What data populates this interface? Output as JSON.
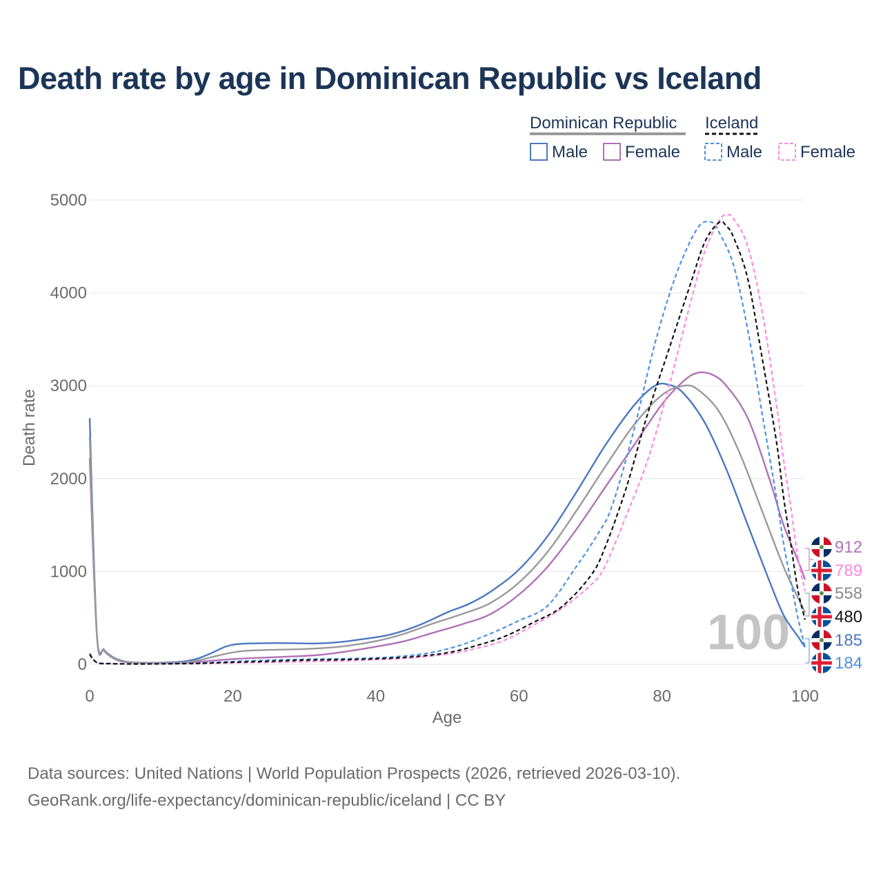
{
  "title": "Death rate by age in Dominican Republic vs Iceland",
  "source_line_1": "Data sources: United Nations | World Population Prospects (2026, retrieved 2026-03-10).",
  "source_line_2": "GeoRank.org/life-expectancy/dominican-republic/iceland | CC BY",
  "legend": {
    "countries": [
      {
        "name": "Dominican Republic",
        "style": "solid",
        "color": "#999999"
      },
      {
        "name": "Iceland",
        "style": "dashed",
        "color": "#111111"
      }
    ],
    "items": [
      {
        "label": "Male",
        "style": "solid",
        "color": "#4a78c0"
      },
      {
        "label": "Female",
        "style": "solid",
        "color": "#b070b8"
      },
      {
        "label": "Male",
        "style": "dashed",
        "color": "#4a90e2"
      },
      {
        "label": "Female",
        "style": "dashed",
        "color": "#ff88e0"
      }
    ]
  },
  "watermark": "100",
  "chart_data": {
    "type": "line",
    "title": "Death rate by age in Dominican Republic vs Iceland",
    "xlabel": "Age",
    "ylabel": "Death rate",
    "xlim": [
      0,
      100
    ],
    "ylim": [
      0,
      5000
    ],
    "xticks": [
      "0",
      "20",
      "40",
      "60",
      "80",
      "100"
    ],
    "yticks": [
      "0",
      "1000",
      "2000",
      "3000",
      "4000",
      "5000"
    ],
    "grid": true,
    "series": [
      {
        "name": "Dominican Republic Male",
        "color": "#4a78c0",
        "dash": false,
        "end_label": "185",
        "points": [
          [
            0,
            2650
          ],
          [
            1,
            330
          ],
          [
            2,
            160
          ],
          [
            3,
            90
          ],
          [
            4,
            50
          ],
          [
            5,
            30
          ],
          [
            7,
            18
          ],
          [
            10,
            18
          ],
          [
            13,
            30
          ],
          [
            15,
            60
          ],
          [
            17,
            120
          ],
          [
            19,
            190
          ],
          [
            21,
            220
          ],
          [
            25,
            228
          ],
          [
            28,
            228
          ],
          [
            32,
            225
          ],
          [
            35,
            240
          ],
          [
            38,
            270
          ],
          [
            42,
            320
          ],
          [
            46,
            420
          ],
          [
            50,
            560
          ],
          [
            53,
            650
          ],
          [
            56,
            780
          ],
          [
            60,
            1020
          ],
          [
            64,
            1380
          ],
          [
            68,
            1850
          ],
          [
            72,
            2350
          ],
          [
            76,
            2780
          ],
          [
            79,
            3000
          ],
          [
            81,
            3010
          ],
          [
            83,
            2920
          ],
          [
            86,
            2600
          ],
          [
            89,
            2100
          ],
          [
            92,
            1500
          ],
          [
            95,
            900
          ],
          [
            97,
            530
          ],
          [
            99,
            300
          ],
          [
            100,
            185
          ]
        ]
      },
      {
        "name": "Dominican Republic Female",
        "color": "#b070b8",
        "dash": false,
        "end_label": "912",
        "points": [
          [
            0,
            2220
          ],
          [
            1,
            320
          ],
          [
            2,
            150
          ],
          [
            3,
            80
          ],
          [
            4,
            40
          ],
          [
            5,
            25
          ],
          [
            8,
            14
          ],
          [
            12,
            15
          ],
          [
            15,
            25
          ],
          [
            18,
            45
          ],
          [
            22,
            65
          ],
          [
            27,
            80
          ],
          [
            32,
            100
          ],
          [
            36,
            140
          ],
          [
            40,
            190
          ],
          [
            44,
            250
          ],
          [
            48,
            340
          ],
          [
            52,
            430
          ],
          [
            56,
            540
          ],
          [
            60,
            750
          ],
          [
            64,
            1050
          ],
          [
            68,
            1450
          ],
          [
            72,
            1900
          ],
          [
            76,
            2350
          ],
          [
            80,
            2800
          ],
          [
            83,
            3050
          ],
          [
            85,
            3140
          ],
          [
            87,
            3120
          ],
          [
            89,
            3000
          ],
          [
            92,
            2650
          ],
          [
            95,
            2000
          ],
          [
            97,
            1500
          ],
          [
            99,
            1120
          ],
          [
            100,
            912
          ]
        ]
      },
      {
        "name": "Dominican Republic Total",
        "color": "#999999",
        "dash": false,
        "end_label": "558",
        "points": [
          [
            0,
            2450
          ],
          [
            1,
            325
          ],
          [
            2,
            155
          ],
          [
            3,
            85
          ],
          [
            4,
            45
          ],
          [
            5,
            27
          ],
          [
            8,
            16
          ],
          [
            12,
            17
          ],
          [
            15,
            40
          ],
          [
            18,
            95
          ],
          [
            21,
            140
          ],
          [
            25,
            155
          ],
          [
            30,
            165
          ],
          [
            35,
            190
          ],
          [
            40,
            250
          ],
          [
            44,
            330
          ],
          [
            48,
            440
          ],
          [
            52,
            540
          ],
          [
            56,
            660
          ],
          [
            60,
            880
          ],
          [
            64,
            1210
          ],
          [
            68,
            1650
          ],
          [
            72,
            2120
          ],
          [
            76,
            2570
          ],
          [
            80,
            2900
          ],
          [
            83,
            3000
          ],
          [
            85,
            2960
          ],
          [
            88,
            2720
          ],
          [
            91,
            2250
          ],
          [
            94,
            1650
          ],
          [
            97,
            1050
          ],
          [
            99,
            720
          ],
          [
            100,
            558
          ]
        ]
      },
      {
        "name": "Iceland Male",
        "color": "#4a90e2",
        "dash": true,
        "end_label": "184",
        "points": [
          [
            0,
            100
          ],
          [
            1,
            20
          ],
          [
            3,
            8
          ],
          [
            6,
            5
          ],
          [
            10,
            6
          ],
          [
            15,
            12
          ],
          [
            20,
            30
          ],
          [
            25,
            45
          ],
          [
            30,
            55
          ],
          [
            35,
            60
          ],
          [
            40,
            70
          ],
          [
            44,
            90
          ],
          [
            48,
            130
          ],
          [
            52,
            210
          ],
          [
            56,
            330
          ],
          [
            60,
            470
          ],
          [
            64,
            630
          ],
          [
            68,
            1050
          ],
          [
            71,
            1400
          ],
          [
            73,
            1700
          ],
          [
            76,
            2500
          ],
          [
            79,
            3450
          ],
          [
            82,
            4200
          ],
          [
            85,
            4700
          ],
          [
            87,
            4760
          ],
          [
            88,
            4650
          ],
          [
            90,
            4300
          ],
          [
            92,
            3600
          ],
          [
            94,
            2700
          ],
          [
            96,
            1800
          ],
          [
            97,
            1300
          ],
          [
            98,
            900
          ],
          [
            99,
            500
          ],
          [
            100,
            184
          ]
        ]
      },
      {
        "name": "Iceland Female",
        "color": "#ff88e0",
        "dash": true,
        "end_label": "789",
        "points": [
          [
            0,
            120
          ],
          [
            1,
            18
          ],
          [
            3,
            7
          ],
          [
            6,
            4
          ],
          [
            10,
            5
          ],
          [
            15,
            8
          ],
          [
            20,
            15
          ],
          [
            25,
            20
          ],
          [
            30,
            28
          ],
          [
            35,
            35
          ],
          [
            40,
            50
          ],
          [
            45,
            70
          ],
          [
            50,
            110
          ],
          [
            54,
            170
          ],
          [
            58,
            260
          ],
          [
            62,
            420
          ],
          [
            66,
            600
          ],
          [
            70,
            850
          ],
          [
            72,
            1050
          ],
          [
            75,
            1600
          ],
          [
            78,
            2200
          ],
          [
            81,
            3000
          ],
          [
            84,
            3900
          ],
          [
            86,
            4450
          ],
          [
            88,
            4780
          ],
          [
            89,
            4840
          ],
          [
            90,
            4800
          ],
          [
            92,
            4500
          ],
          [
            94,
            3800
          ],
          [
            96,
            2800
          ],
          [
            97,
            2200
          ],
          [
            98,
            1700
          ],
          [
            99,
            1150
          ],
          [
            100,
            789
          ]
        ]
      },
      {
        "name": "Iceland Total",
        "color": "#111111",
        "dash": true,
        "end_label": "480",
        "points": [
          [
            0,
            110
          ],
          [
            1,
            19
          ],
          [
            3,
            7
          ],
          [
            6,
            4
          ],
          [
            10,
            5
          ],
          [
            15,
            10
          ],
          [
            20,
            22
          ],
          [
            25,
            32
          ],
          [
            30,
            45
          ],
          [
            35,
            50
          ],
          [
            40,
            60
          ],
          [
            45,
            80
          ],
          [
            50,
            125
          ],
          [
            54,
            200
          ],
          [
            58,
            300
          ],
          [
            62,
            450
          ],
          [
            66,
            620
          ],
          [
            70,
            950
          ],
          [
            72,
            1250
          ],
          [
            75,
            1900
          ],
          [
            78,
            2700
          ],
          [
            81,
            3400
          ],
          [
            84,
            4100
          ],
          [
            86,
            4550
          ],
          [
            88,
            4760
          ],
          [
            89,
            4720
          ],
          [
            90,
            4600
          ],
          [
            92,
            4150
          ],
          [
            94,
            3300
          ],
          [
            96,
            2400
          ],
          [
            97,
            1800
          ],
          [
            98,
            1300
          ],
          [
            99,
            800
          ],
          [
            100,
            480
          ]
        ]
      }
    ]
  },
  "end_labels": [
    {
      "value": "912",
      "color": "#b070b8",
      "flag": "dominican-republic-flag"
    },
    {
      "value": "789",
      "color": "#ff88e0",
      "flag": "iceland-flag"
    },
    {
      "value": "558",
      "color": "#8a8a8a",
      "flag": "dominican-republic-flag"
    },
    {
      "value": "480",
      "color": "#111111",
      "flag": "iceland-flag"
    },
    {
      "value": "185",
      "color": "#4a78c0",
      "flag": "dominican-republic-flag"
    },
    {
      "value": "184",
      "color": "#4a90e2",
      "flag": "iceland-flag"
    }
  ]
}
